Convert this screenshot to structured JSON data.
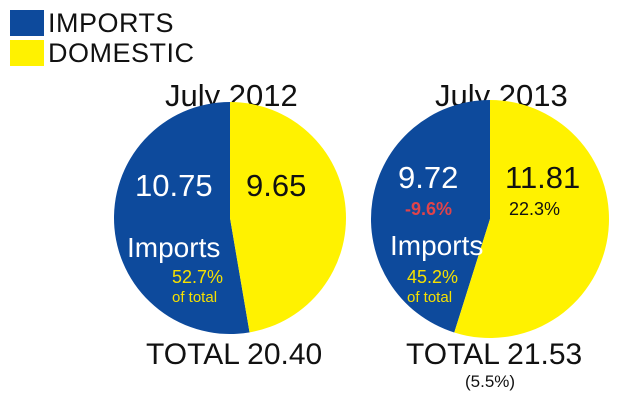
{
  "legend": [
    {
      "label": "IMPORTS",
      "color": "#0d4a9c"
    },
    {
      "label": "DOMESTIC",
      "color": "#fff200"
    }
  ],
  "chart_data": [
    {
      "type": "pie",
      "title": "July 2012",
      "categories": [
        "IMPORTS",
        "DOMESTIC"
      ],
      "values": [
        10.75,
        9.65
      ],
      "colors": [
        "#0d4a9c",
        "#fff200"
      ],
      "data_labels": [
        "10.75",
        "9.65"
      ],
      "imports_label": "Imports",
      "imports_share": "52.7%",
      "share_note": "of total",
      "total": "TOTAL 20.40"
    },
    {
      "type": "pie",
      "title": "July 2013",
      "categories": [
        "IMPORTS",
        "DOMESTIC"
      ],
      "values": [
        9.72,
        11.81
      ],
      "colors": [
        "#0d4a9c",
        "#fff200"
      ],
      "data_labels": [
        "9.72",
        "11.81"
      ],
      "imports_change": "-9.6%",
      "domestic_change": "22.3%",
      "imports_label": "Imports",
      "imports_share": "45.2%",
      "share_note": "of total",
      "total": "TOTAL 21.53",
      "total_change": "(5.5%)"
    }
  ]
}
